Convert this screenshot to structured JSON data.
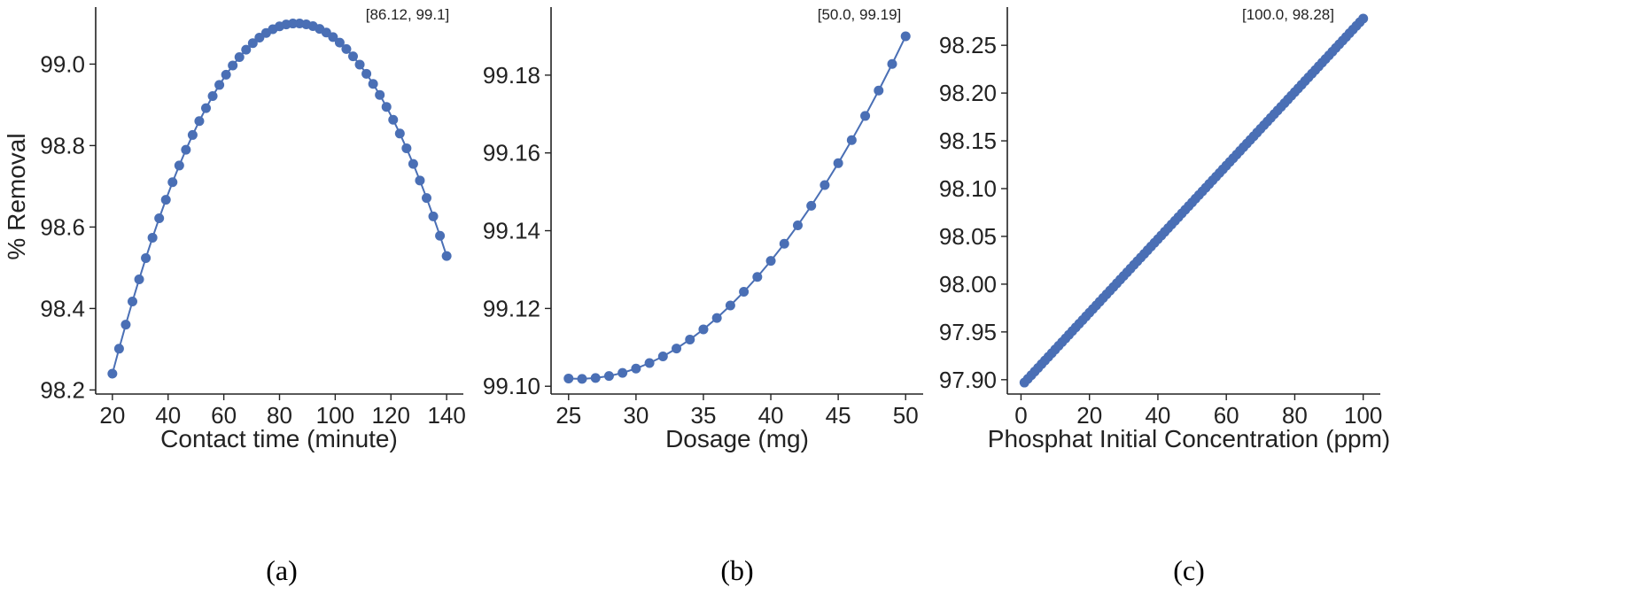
{
  "figure": {
    "marker_color": "#4a6fb5"
  },
  "chart_data": [
    {
      "type": "line",
      "panel_label": "(a)",
      "xlabel": "Contact time (minute)",
      "ylabel": "% Removal",
      "xlim": [
        14,
        146
      ],
      "ylim": [
        98.19,
        99.14
      ],
      "xticks": [
        20,
        40,
        60,
        80,
        100,
        120,
        140
      ],
      "xtick_labels": [
        "20",
        "40",
        "60",
        "80",
        "100",
        "120",
        "140"
      ],
      "yticks": [
        98.2,
        98.4,
        98.6,
        98.8,
        99.0
      ],
      "ytick_labels": [
        "98.2",
        "98.4",
        "98.6",
        "98.8",
        "99.0"
      ],
      "annotation": "[86.12, 99.1]",
      "curve": {
        "kind": "quadratic_peak",
        "x_start": 20,
        "x_end": 140,
        "n_points": 51,
        "peak_x": 86.12,
        "peak_y": 99.1,
        "y_at_start": 98.24
      }
    },
    {
      "type": "line",
      "panel_label": "(b)",
      "xlabel": "Dosage (mg)",
      "ylabel": "",
      "xlim": [
        23.7,
        51.3
      ],
      "ylim": [
        99.098,
        99.1975
      ],
      "xticks": [
        25,
        30,
        35,
        40,
        45,
        50
      ],
      "xtick_labels": [
        "25",
        "30",
        "35",
        "40",
        "45",
        "50"
      ],
      "yticks": [
        99.1,
        99.12,
        99.14,
        99.16,
        99.18
      ],
      "ytick_labels": [
        "99.10",
        "99.12",
        "99.14",
        "99.16",
        "99.18"
      ],
      "annotation": "[50.0, 99.19]",
      "curve": {
        "kind": "quadratic_min",
        "x_start": 25,
        "x_end": 50,
        "n_points": 26,
        "min_x": 25.8,
        "min_y": 99.1019,
        "y_at_end": 99.19
      }
    },
    {
      "type": "line",
      "panel_label": "(c)",
      "xlabel": "Phosphat Initial Concentration (ppm)",
      "ylabel": "",
      "xlim": [
        -4,
        105
      ],
      "ylim": [
        97.885,
        98.29
      ],
      "xticks": [
        0,
        20,
        40,
        60,
        80,
        100
      ],
      "xtick_labels": [
        "0",
        "20",
        "40",
        "60",
        "80",
        "100"
      ],
      "yticks": [
        97.9,
        97.95,
        98.0,
        98.05,
        98.1,
        98.15,
        98.2,
        98.25
      ],
      "ytick_labels": [
        "97.90",
        "97.95",
        "98.00",
        "98.05",
        "98.10",
        "98.15",
        "98.20",
        "98.25"
      ],
      "annotation": "[100.0, 98.28]",
      "curve": {
        "kind": "linear",
        "x_start": 1,
        "x_end": 100,
        "n_points": 100,
        "y_at_start": 97.897,
        "y_at_end": 98.278
      }
    }
  ]
}
